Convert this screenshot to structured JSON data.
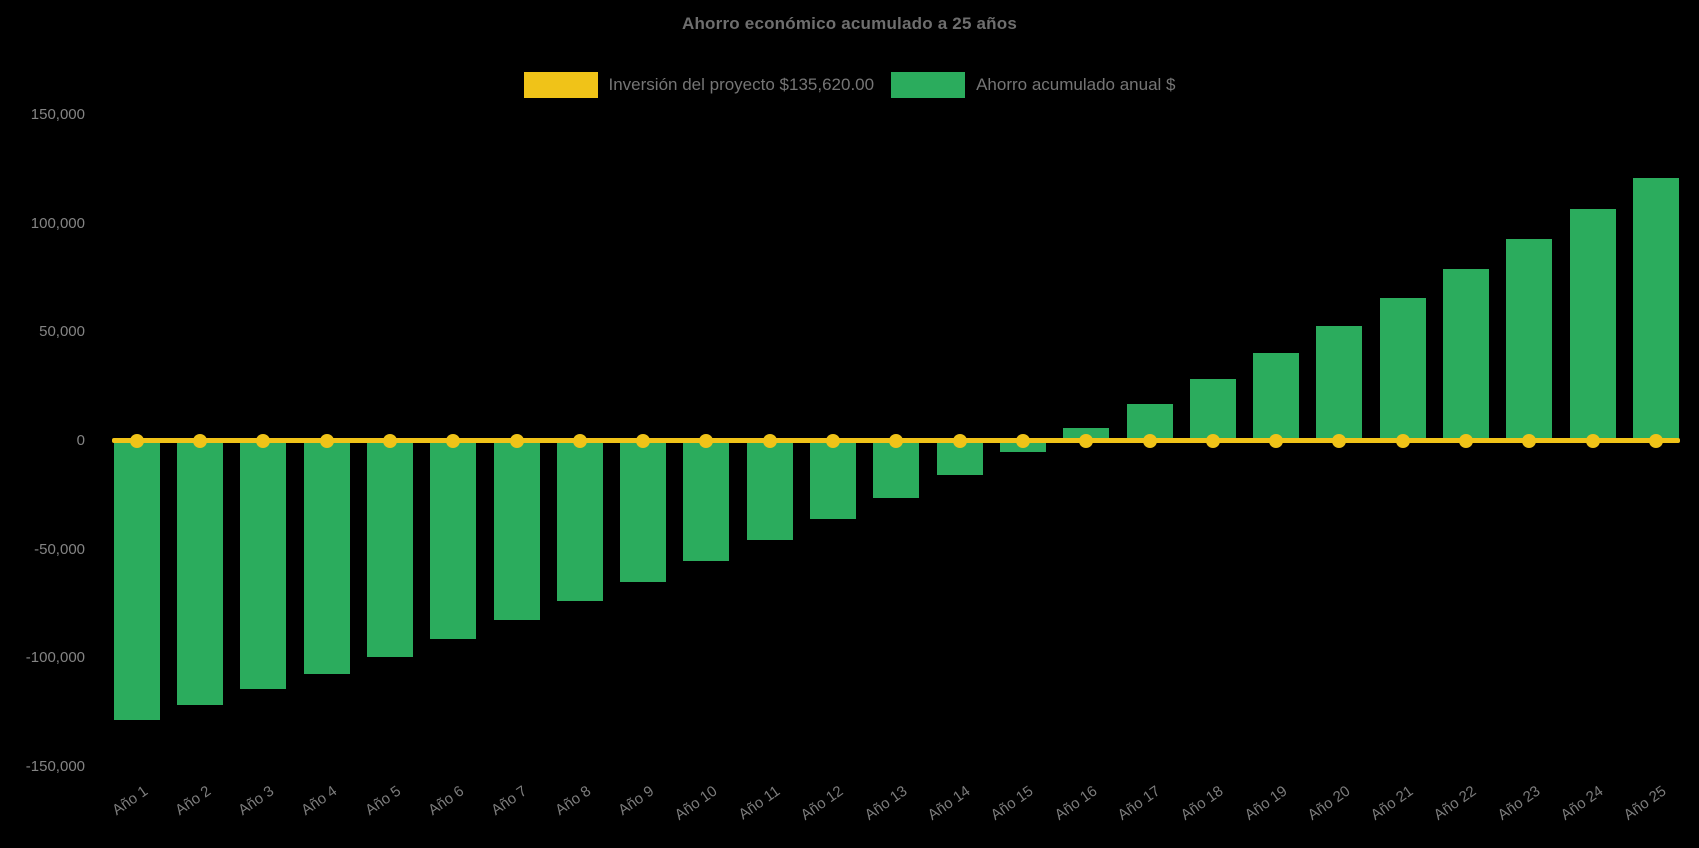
{
  "title": "Ahorro económico acumulado a 25 años",
  "legend": [
    {
      "label": "Inversión del proyecto $135,620.00",
      "series": "investment-line",
      "color": "#F0C318"
    },
    {
      "label": "Ahorro acumulado anual $",
      "series": "cumulative-savings-bars",
      "color": "#2BAC5D"
    }
  ],
  "colors": {
    "background": "#000000",
    "bar_green": "#2BAC5D",
    "line_yellow": "#F0C318",
    "title_text": "#6e6e6e",
    "legend_text": "#757575",
    "axis_text": "#848484"
  },
  "chart_data": {
    "type": "combo",
    "subtype": "bar-with-zero-line",
    "title": "Ahorro económico acumulado a 25 años",
    "xlabel": "",
    "ylabel": "",
    "ylim": [
      -150000,
      150000
    ],
    "grid": false,
    "legend_position": "top-center",
    "y_ticks": [
      150000,
      100000,
      50000,
      0,
      -50000,
      -100000,
      -150000
    ],
    "y_tick_labels": [
      "150,000",
      "100,000",
      "50,000",
      "0",
      "-50,000",
      "-100,000",
      "-150,000"
    ],
    "categories": [
      "Año 1",
      "Año 2",
      "Año 3",
      "Año 4",
      "Año 5",
      "Año 6",
      "Año 7",
      "Año 8",
      "Año 9",
      "Año 10",
      "Año 11",
      "Año 12",
      "Año 13",
      "Año 14",
      "Año 15",
      "Año 16",
      "Año 17",
      "Año 18",
      "Año 19",
      "Año 20",
      "Año 21",
      "Año 22",
      "Año 23",
      "Año 24",
      "Año 25"
    ],
    "series": [
      {
        "name": "Inversión del proyecto $135,620.00",
        "type": "line",
        "color": "#F0C318",
        "point_markers": true,
        "investment_amount_shown_in_label": 135620.0,
        "values": [
          0,
          0,
          0,
          0,
          0,
          0,
          0,
          0,
          0,
          0,
          0,
          0,
          0,
          0,
          0,
          0,
          0,
          0,
          0,
          0,
          0,
          0,
          0,
          0,
          0
        ]
      },
      {
        "name": "Ahorro acumulado anual $",
        "type": "bar",
        "color": "#2BAC5D",
        "values": [
          -128400,
          -121500,
          -114400,
          -107400,
          -99500,
          -91300,
          -82700,
          -73900,
          -64900,
          -55300,
          -45800,
          -36200,
          -26500,
          -15800,
          -5200,
          5700,
          17000,
          28300,
          40400,
          52900,
          65600,
          79000,
          92600,
          106400,
          120700
        ]
      }
    ]
  }
}
